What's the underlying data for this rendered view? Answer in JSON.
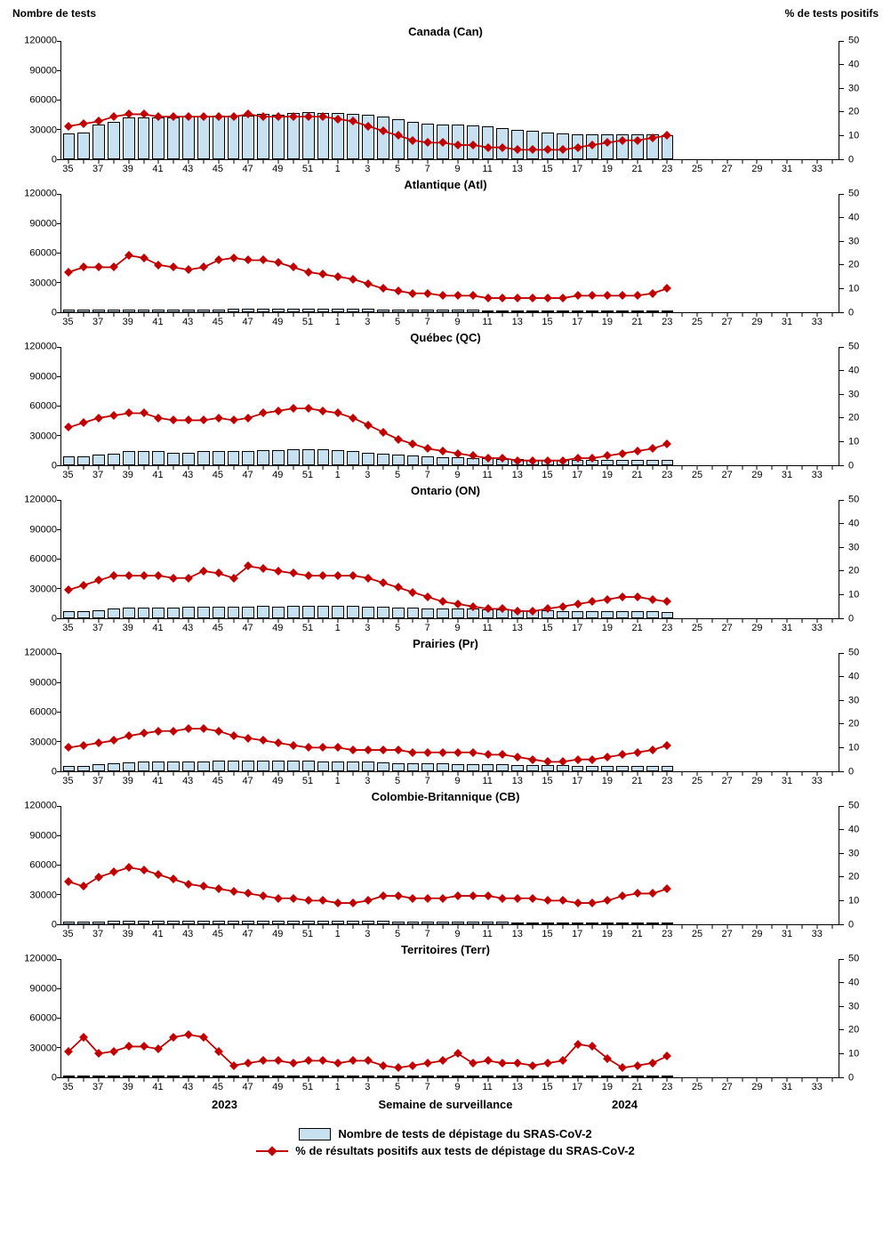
{
  "global": {
    "left_axis_title": "Nombre de tests",
    "right_axis_title": "% de tests positifs",
    "x_axis_title": "Semaine de surveillance",
    "year_left": "2023",
    "year_right": "2024",
    "legend_bar": "Nombre de tests de dépistage du SRAS-CoV-2",
    "legend_line": "% de résultats positifs aux tests de dépistage du SRAS-CoV-2",
    "bar_color": "#c7e1f0",
    "bar_border": "#000000",
    "line_color": "#c00000",
    "marker_color": "#c00000",
    "background_color": "#ffffff",
    "y_left": {
      "min": 0,
      "max": 120000,
      "ticks": [
        0,
        30000,
        60000,
        90000,
        120000
      ]
    },
    "y_right": {
      "min": 0,
      "max": 50,
      "ticks": [
        0,
        10,
        20,
        30,
        40,
        50
      ]
    },
    "weeks": [
      35,
      36,
      37,
      38,
      39,
      40,
      41,
      42,
      43,
      44,
      45,
      46,
      47,
      48,
      49,
      50,
      51,
      52,
      1,
      2,
      3,
      4,
      5,
      6,
      7,
      8,
      9,
      10,
      11,
      12,
      13,
      14,
      15,
      16,
      17,
      18,
      19,
      20,
      21,
      22,
      23,
      24,
      25,
      26,
      27,
      28,
      29,
      30,
      31,
      32,
      33,
      34
    ],
    "x_tick_weeks": [
      35,
      37,
      39,
      41,
      43,
      45,
      47,
      49,
      51,
      1,
      3,
      5,
      7,
      9,
      11,
      13,
      15,
      17,
      19,
      21,
      23,
      25,
      27,
      29,
      31,
      33
    ],
    "data_weeks_count": 41
  },
  "panels": [
    {
      "id": "canada",
      "title": "Canada (Can)",
      "tests": [
        26000,
        27000,
        35000,
        38000,
        42000,
        42000,
        42000,
        42000,
        43000,
        43000,
        44000,
        44000,
        44000,
        46000,
        45000,
        47000,
        48000,
        47000,
        47000,
        46000,
        45000,
        43000,
        41000,
        38000,
        36000,
        35000,
        35000,
        34000,
        33000,
        32000,
        30000,
        29000,
        27000,
        26000,
        25000,
        25000,
        25000,
        25000,
        25000,
        25000,
        24000
      ],
      "pct": [
        14,
        15,
        16,
        18,
        19,
        19,
        18,
        18,
        18,
        18,
        18,
        18,
        19,
        18,
        18,
        18,
        18,
        18,
        17,
        16,
        14,
        12,
        10,
        8,
        7,
        7,
        6,
        6,
        5,
        5,
        4,
        4,
        4,
        4,
        5,
        6,
        7,
        8,
        8,
        9,
        10
      ]
    },
    {
      "id": "atlantique",
      "title": "Atlantique (Atl)",
      "tests": [
        2400,
        2400,
        2600,
        2800,
        3000,
        3000,
        3000,
        3000,
        3000,
        3000,
        3000,
        3200,
        3200,
        3400,
        3400,
        3400,
        3600,
        3600,
        3600,
        3400,
        3200,
        3000,
        2800,
        2600,
        2600,
        2400,
        2400,
        2400,
        2200,
        2200,
        2200,
        2000,
        2000,
        2000,
        2000,
        2000,
        2000,
        2000,
        2000,
        2000,
        2000
      ],
      "pct": [
        17,
        19,
        19,
        19,
        24,
        23,
        20,
        19,
        18,
        19,
        22,
        23,
        22,
        22,
        21,
        19,
        17,
        16,
        15,
        14,
        12,
        10,
        9,
        8,
        8,
        7,
        7,
        7,
        6,
        6,
        6,
        6,
        6,
        6,
        7,
        7,
        7,
        7,
        7,
        8,
        10
      ]
    },
    {
      "id": "quebec",
      "title": "Québec (QC)",
      "tests": [
        9000,
        9000,
        11000,
        12000,
        14000,
        14000,
        14000,
        13000,
        13000,
        14000,
        14000,
        14000,
        14000,
        15000,
        15000,
        16000,
        16000,
        16000,
        15000,
        14000,
        13000,
        12000,
        11000,
        10000,
        9000,
        8500,
        8000,
        7500,
        7000,
        6500,
        6000,
        5500,
        5500,
        5000,
        5000,
        5000,
        5000,
        5000,
        5000,
        5500,
        5500
      ],
      "pct": [
        16,
        18,
        20,
        21,
        22,
        22,
        20,
        19,
        19,
        19,
        20,
        19,
        20,
        22,
        23,
        24,
        24,
        23,
        22,
        20,
        17,
        14,
        11,
        9,
        7,
        6,
        5,
        4,
        3,
        3,
        2,
        2,
        2,
        2,
        3,
        3,
        4,
        5,
        6,
        7,
        9
      ]
    },
    {
      "id": "ontario",
      "title": "Ontario (ON)",
      "tests": [
        7000,
        7500,
        8500,
        9500,
        11000,
        11000,
        11000,
        11000,
        11500,
        11500,
        12000,
        12000,
        12000,
        12500,
        12000,
        12500,
        13000,
        12500,
        12500,
        12500,
        12000,
        11500,
        11000,
        10500,
        10000,
        10000,
        9500,
        9500,
        9000,
        9000,
        8500,
        8500,
        8000,
        7500,
        7500,
        7000,
        7000,
        7000,
        7000,
        7000,
        6500
      ],
      "pct": [
        12,
        14,
        16,
        18,
        18,
        18,
        18,
        17,
        17,
        20,
        19,
        17,
        22,
        21,
        20,
        19,
        18,
        18,
        18,
        18,
        17,
        15,
        13,
        11,
        9,
        7,
        6,
        5,
        4,
        4,
        3,
        3,
        4,
        5,
        6,
        7,
        8,
        9,
        9,
        8,
        7
      ]
    },
    {
      "id": "prairies",
      "title": "Prairies (Pr)",
      "tests": [
        5000,
        5500,
        7000,
        8000,
        9000,
        9500,
        9500,
        9500,
        10000,
        10000,
        10500,
        11000,
        11000,
        11000,
        10500,
        10500,
        10500,
        10000,
        10000,
        9500,
        9500,
        9000,
        8500,
        8500,
        8000,
        8000,
        7500,
        7500,
        7000,
        7000,
        6500,
        6500,
        6000,
        6000,
        5500,
        5500,
        5500,
        5500,
        5500,
        5500,
        5500
      ],
      "pct": [
        10,
        11,
        12,
        13,
        15,
        16,
        17,
        17,
        18,
        18,
        17,
        15,
        14,
        13,
        12,
        11,
        10,
        10,
        10,
        9,
        9,
        9,
        9,
        8,
        8,
        8,
        8,
        8,
        7,
        7,
        6,
        5,
        4,
        4,
        5,
        5,
        6,
        7,
        8,
        9,
        11
      ]
    },
    {
      "id": "cb",
      "title": "Colombie-Britannique (CB)",
      "tests": [
        2600,
        2600,
        3000,
        3200,
        3400,
        3400,
        3400,
        3400,
        3400,
        3400,
        3400,
        3400,
        3400,
        3600,
        3600,
        3600,
        3800,
        3800,
        3800,
        3600,
        3400,
        3200,
        3000,
        2800,
        2800,
        2600,
        2600,
        2600,
        2400,
        2400,
        2200,
        2200,
        2200,
        2000,
        2000,
        2000,
        2000,
        2000,
        2000,
        2000,
        2000
      ],
      "pct": [
        18,
        16,
        20,
        22,
        24,
        23,
        21,
        19,
        17,
        16,
        15,
        14,
        13,
        12,
        11,
        11,
        10,
        10,
        9,
        9,
        10,
        12,
        12,
        11,
        11,
        11,
        12,
        12,
        12,
        11,
        11,
        11,
        10,
        10,
        9,
        9,
        10,
        12,
        13,
        13,
        15
      ]
    },
    {
      "id": "territoires",
      "title": "Territoires (Terr)",
      "tests": [
        220,
        230,
        240,
        260,
        280,
        280,
        280,
        280,
        300,
        300,
        300,
        300,
        300,
        300,
        300,
        300,
        320,
        320,
        320,
        300,
        300,
        280,
        280,
        260,
        260,
        240,
        240,
        240,
        220,
        220,
        220,
        200,
        200,
        200,
        200,
        200,
        200,
        200,
        200,
        200,
        200
      ],
      "pct": [
        11,
        17,
        10,
        11,
        13,
        13,
        12,
        17,
        18,
        17,
        11,
        5,
        6,
        7,
        7,
        6,
        7,
        7,
        6,
        7,
        7,
        5,
        4,
        5,
        6,
        7,
        10,
        6,
        7,
        6,
        6,
        5,
        6,
        7,
        14,
        13,
        8,
        4,
        5,
        6,
        9
      ]
    }
  ]
}
